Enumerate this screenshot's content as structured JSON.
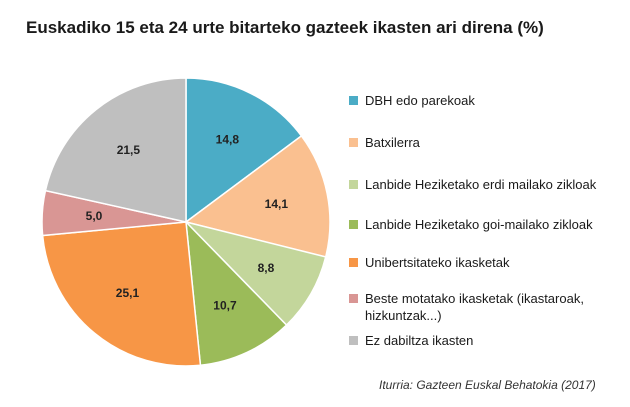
{
  "title": "Euskadiko 15 eta 24 urte bitarteko gazteek ikasten ari direna (%)",
  "source": "Iturria: Gazteen Euskal Behatokia (2017)",
  "chart_data": {
    "type": "pie",
    "title": "Euskadiko 15 eta 24 urte bitarteko gazteek ikasten ari direna (%)",
    "legend_position": "right",
    "slices": [
      {
        "label": "DBH edo parekoak",
        "value": 14.8,
        "value_label": "14,8",
        "color": "#4bacc6"
      },
      {
        "label": "Batxilerra",
        "value": 14.1,
        "value_label": "14,1",
        "color": "#fac090"
      },
      {
        "label": "Lanbide Heziketako erdi mailako zikloak",
        "value": 8.8,
        "value_label": "8,8",
        "color": "#c3d69b"
      },
      {
        "label": "Lanbide Heziketako goi-mailako zikloak",
        "value": 10.7,
        "value_label": "10,7",
        "color": "#9bbb59"
      },
      {
        "label": "Unibertsitateko ikasketak",
        "value": 25.1,
        "value_label": "25,1",
        "color": "#f79646"
      },
      {
        "label": "Beste motatako ikasketak (ikastaroak, hizkuntzak...)",
        "value": 5.0,
        "value_label": "5,0",
        "color": "#d99694"
      },
      {
        "label": "Ez dabiltza ikasten",
        "value": 21.5,
        "value_label": "21,5",
        "color": "#bfbfbf"
      }
    ]
  }
}
